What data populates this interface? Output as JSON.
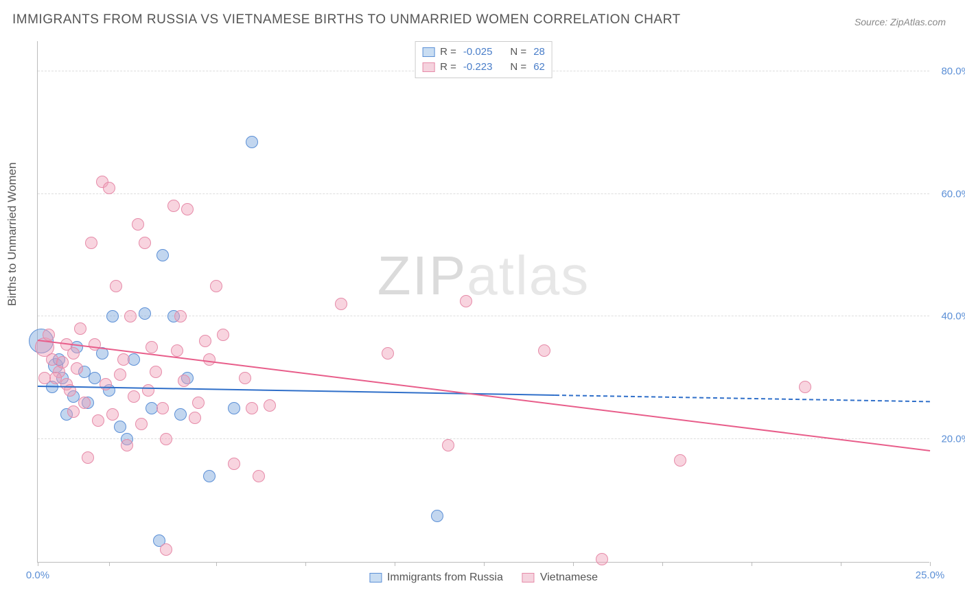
{
  "title": "IMMIGRANTS FROM RUSSIA VS VIETNAMESE BIRTHS TO UNMARRIED WOMEN CORRELATION CHART",
  "source": "Source: ZipAtlas.com",
  "watermark_a": "ZIP",
  "watermark_b": "atlas",
  "chart": {
    "type": "scatter",
    "background_color": "#ffffff",
    "grid_color": "#dddddd",
    "axis_color": "#bbbbbb",
    "tick_label_color": "#5b8fd6",
    "y_axis_title": "Births to Unmarried Women",
    "xlim": [
      0,
      25
    ],
    "ylim": [
      0,
      85
    ],
    "x_ticks": [
      0,
      2,
      5,
      7.5,
      10,
      12.5,
      15,
      17.5,
      20,
      22.5,
      25
    ],
    "x_tick_labels": {
      "0": "0.0%",
      "25": "25.0%"
    },
    "y_ticks": [
      20,
      40,
      60,
      80
    ],
    "y_tick_labels": {
      "20": "20.0%",
      "40": "40.0%",
      "60": "60.0%",
      "80": "80.0%"
    },
    "series": [
      {
        "name": "Immigrants from Russia",
        "fill_color": "rgba(120,165,220,0.45)",
        "stroke_color": "#5b8fd6",
        "legend_swatch_fill": "#c9ddf2",
        "legend_swatch_border": "#5b8fd6",
        "marker_radius": 9,
        "R": "-0.025",
        "N": "28",
        "trend": {
          "x1": 0,
          "y1": 28.5,
          "x2_solid": 14.5,
          "x2_dash": 25,
          "y2": 26.0,
          "color": "#2f6fc9",
          "width": 2
        },
        "points": [
          [
            6.0,
            68.5,
            9
          ],
          [
            0.1,
            36.0,
            18
          ],
          [
            0.5,
            32.0,
            11
          ],
          [
            0.7,
            30.0,
            9
          ],
          [
            1.1,
            35.0,
            9
          ],
          [
            1.4,
            26.0,
            9
          ],
          [
            1.8,
            34.0,
            9
          ],
          [
            2.1,
            40.0,
            9
          ],
          [
            2.3,
            22.0,
            9
          ],
          [
            2.5,
            20.0,
            9
          ],
          [
            2.7,
            33.0,
            9
          ],
          [
            3.0,
            40.5,
            9
          ],
          [
            3.2,
            25.0,
            9
          ],
          [
            3.5,
            50.0,
            9
          ],
          [
            3.8,
            40.0,
            9
          ],
          [
            4.0,
            24.0,
            9
          ],
          [
            4.2,
            30.0,
            9
          ],
          [
            4.8,
            14.0,
            9
          ],
          [
            5.5,
            25.0,
            9
          ],
          [
            3.4,
            3.5,
            9
          ],
          [
            11.2,
            7.5,
            9
          ],
          [
            1.0,
            27.0,
            9
          ],
          [
            0.8,
            24.0,
            9
          ],
          [
            1.6,
            30.0,
            9
          ],
          [
            2.0,
            28.0,
            9
          ],
          [
            0.4,
            28.5,
            9
          ],
          [
            1.3,
            31.0,
            9
          ],
          [
            0.6,
            33.0,
            9
          ]
        ]
      },
      {
        "name": "Vietnamese",
        "fill_color": "rgba(240,160,185,0.45)",
        "stroke_color": "#e68aa8",
        "legend_swatch_fill": "#f5d3de",
        "legend_swatch_border": "#e68aa8",
        "marker_radius": 9,
        "R": "-0.223",
        "N": "62",
        "trend": {
          "x1": 0,
          "y1": 36.0,
          "x2_solid": 25,
          "x2_dash": 25,
          "y2": 18.0,
          "color": "#e85d8a",
          "width": 2
        },
        "points": [
          [
            0.2,
            35.0,
            14
          ],
          [
            0.4,
            33.0,
            9
          ],
          [
            0.6,
            31.0,
            9
          ],
          [
            0.8,
            29.0,
            9
          ],
          [
            1.0,
            34.0,
            9
          ],
          [
            1.2,
            38.0,
            9
          ],
          [
            1.4,
            17.0,
            9
          ],
          [
            1.5,
            52.0,
            9
          ],
          [
            1.8,
            62.0,
            9
          ],
          [
            2.0,
            61.0,
            9
          ],
          [
            2.2,
            45.0,
            9
          ],
          [
            2.4,
            33.0,
            9
          ],
          [
            2.6,
            40.0,
            9
          ],
          [
            2.8,
            55.0,
            9
          ],
          [
            3.0,
            52.0,
            9
          ],
          [
            3.2,
            35.0,
            9
          ],
          [
            3.5,
            25.0,
            9
          ],
          [
            3.8,
            58.0,
            9
          ],
          [
            4.0,
            40.0,
            9
          ],
          [
            4.2,
            57.5,
            9
          ],
          [
            4.5,
            26.0,
            9
          ],
          [
            4.8,
            33.0,
            9
          ],
          [
            5.0,
            45.0,
            9
          ],
          [
            5.2,
            37.0,
            9
          ],
          [
            5.5,
            16.0,
            9
          ],
          [
            5.8,
            30.0,
            9
          ],
          [
            6.0,
            25.0,
            9
          ],
          [
            6.2,
            14.0,
            9
          ],
          [
            6.5,
            25.5,
            9
          ],
          [
            3.6,
            2.0,
            9
          ],
          [
            8.5,
            42.0,
            9
          ],
          [
            9.8,
            34.0,
            9
          ],
          [
            12.0,
            42.5,
            9
          ],
          [
            11.5,
            19.0,
            9
          ],
          [
            14.2,
            34.5,
            9
          ],
          [
            15.8,
            0.5,
            9
          ],
          [
            18.0,
            16.5,
            9
          ],
          [
            21.5,
            28.5,
            9
          ],
          [
            0.3,
            37.0,
            9
          ],
          [
            0.5,
            30.0,
            9
          ],
          [
            0.7,
            32.5,
            9
          ],
          [
            0.9,
            28.0,
            9
          ],
          [
            1.1,
            31.5,
            9
          ],
          [
            1.3,
            26.0,
            9
          ],
          [
            1.6,
            35.5,
            9
          ],
          [
            1.7,
            23.0,
            9
          ],
          [
            1.9,
            29.0,
            9
          ],
          [
            2.1,
            24.0,
            9
          ],
          [
            2.3,
            30.5,
            9
          ],
          [
            2.5,
            19.0,
            9
          ],
          [
            2.7,
            27.0,
            9
          ],
          [
            2.9,
            22.5,
            9
          ],
          [
            3.1,
            28.0,
            9
          ],
          [
            3.3,
            31.0,
            9
          ],
          [
            3.6,
            20.0,
            9
          ],
          [
            3.9,
            34.5,
            9
          ],
          [
            4.1,
            29.5,
            9
          ],
          [
            4.4,
            23.5,
            9
          ],
          [
            4.7,
            36.0,
            9
          ],
          [
            1.0,
            24.5,
            9
          ],
          [
            0.8,
            35.5,
            9
          ],
          [
            0.2,
            30.0,
            9
          ]
        ]
      }
    ],
    "legend_top": {
      "R_label": "R =",
      "N_label": "N ="
    },
    "legend_bottom": [
      {
        "swatch_fill": "#c9ddf2",
        "swatch_border": "#5b8fd6",
        "label": "Immigrants from Russia"
      },
      {
        "swatch_fill": "#f5d3de",
        "swatch_border": "#e68aa8",
        "label": "Vietnamese"
      }
    ]
  }
}
